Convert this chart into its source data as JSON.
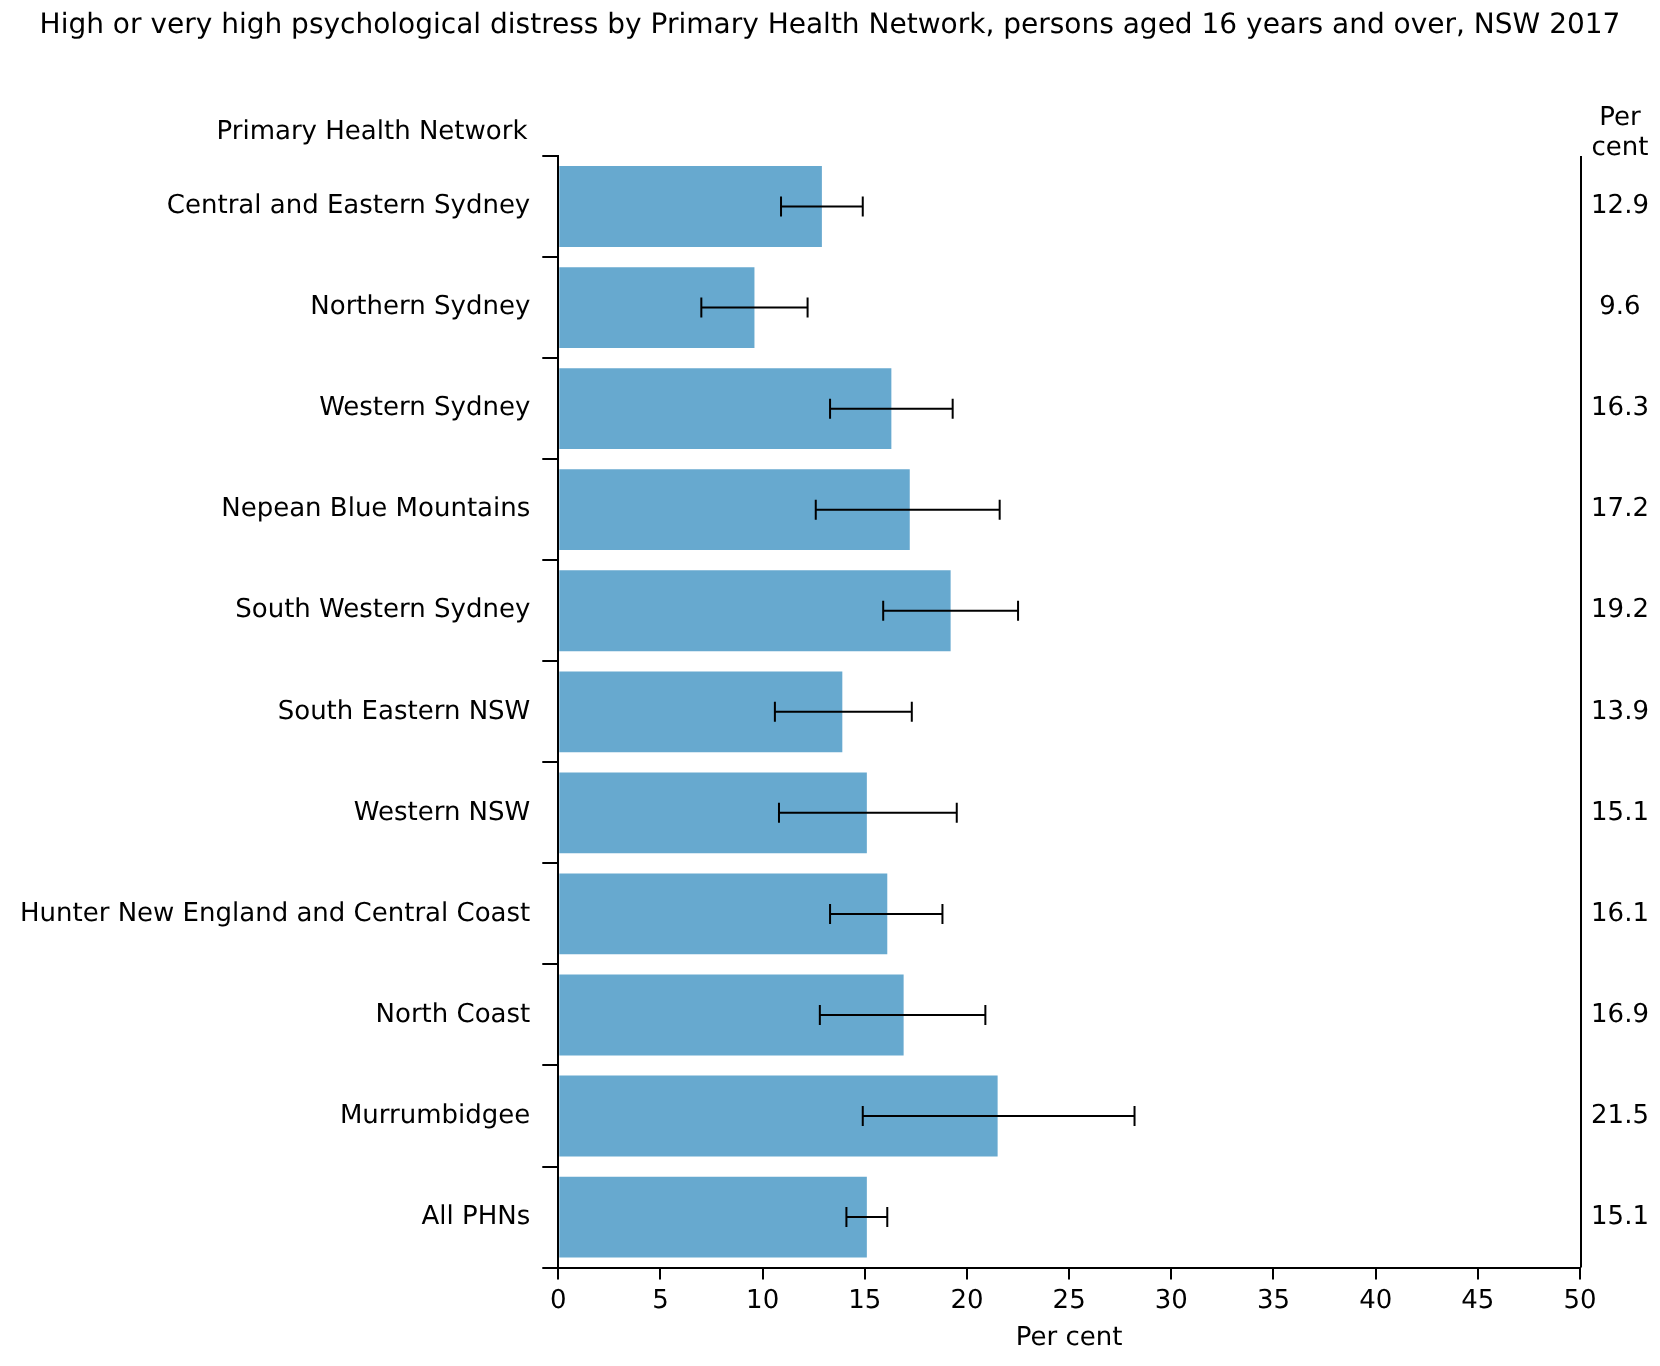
{
  "chart_data": {
    "type": "bar",
    "orientation": "horizontal",
    "title": "High or very high psychological distress by Primary Health Network, persons aged 16 years and over, NSW 2017",
    "ylabel": "Primary Health Network",
    "xlabel": "Per cent",
    "annotations": [
      "Per cent"
    ],
    "categories": [
      "Central and Eastern Sydney",
      "Northern Sydney",
      "Western Sydney",
      "Nepean Blue Mountains",
      "South Western Sydney",
      "South Eastern NSW",
      "Western NSW",
      "Hunter New England and Central Coast",
      "North Coast",
      "Murrumbidgee",
      "All PHNs"
    ],
    "values": [
      12.9,
      9.6,
      16.3,
      17.2,
      19.2,
      13.9,
      15.1,
      16.1,
      16.9,
      21.5,
      15.1
    ],
    "errors": [
      [
        10.9,
        14.9
      ],
      [
        7.0,
        12.2
      ],
      [
        13.3,
        19.3
      ],
      [
        12.6,
        21.6
      ],
      [
        15.9,
        22.5
      ],
      [
        10.6,
        17.3
      ],
      [
        10.8,
        19.5
      ],
      [
        13.3,
        18.8
      ],
      [
        12.8,
        20.9
      ],
      [
        14.9,
        28.2
      ],
      [
        14.1,
        16.1
      ]
    ],
    "color": "#67a9cf",
    "data_labels": true,
    "xlim": [
      0,
      50
    ],
    "xticks": [
      0,
      5,
      10,
      15,
      20,
      25,
      30,
      35,
      40,
      45,
      50
    ],
    "grid": false,
    "legend": false
  }
}
